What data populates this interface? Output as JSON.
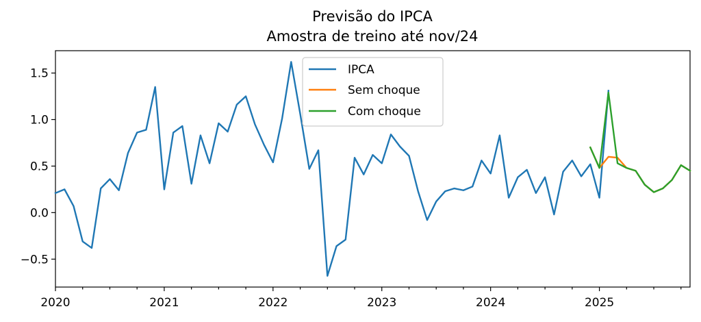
{
  "chart_data": {
    "type": "line",
    "title": "Previsão do IPCA",
    "subtitle": "Amostra de treino até nov/24",
    "xlabel": "",
    "ylabel": "",
    "xlim": [
      "2020-01",
      "2025-11"
    ],
    "ylim": [
      -0.8,
      1.74
    ],
    "x_ticks": [
      "2020",
      "2021",
      "2022",
      "2023",
      "2024",
      "2025"
    ],
    "y_ticks": [
      -0.5,
      0.0,
      0.5,
      1.0,
      1.5
    ],
    "y_tick_labels": [
      "−0.5",
      "0.0",
      "0.5",
      "1.0",
      "1.5"
    ],
    "grid": false,
    "legend_position": "top-center",
    "series": [
      {
        "name": "IPCA",
        "color": "#1f77b4",
        "x": [
          "2020-01",
          "2020-02",
          "2020-03",
          "2020-04",
          "2020-05",
          "2020-06",
          "2020-07",
          "2020-08",
          "2020-09",
          "2020-10",
          "2020-11",
          "2020-12",
          "2021-01",
          "2021-02",
          "2021-03",
          "2021-04",
          "2021-05",
          "2021-06",
          "2021-07",
          "2021-08",
          "2021-09",
          "2021-10",
          "2021-11",
          "2021-12",
          "2022-01",
          "2022-02",
          "2022-03",
          "2022-04",
          "2022-05",
          "2022-06",
          "2022-07",
          "2022-08",
          "2022-09",
          "2022-10",
          "2022-11",
          "2022-12",
          "2023-01",
          "2023-02",
          "2023-03",
          "2023-04",
          "2023-05",
          "2023-06",
          "2023-07",
          "2023-08",
          "2023-09",
          "2023-10",
          "2023-11",
          "2023-12",
          "2024-01",
          "2024-02",
          "2024-03",
          "2024-04",
          "2024-05",
          "2024-06",
          "2024-07",
          "2024-08",
          "2024-09",
          "2024-10",
          "2024-11",
          "2024-12",
          "2025-01",
          "2025-02"
        ],
        "values": [
          0.21,
          0.25,
          0.07,
          -0.31,
          -0.38,
          0.26,
          0.36,
          0.24,
          0.64,
          0.86,
          0.89,
          1.35,
          0.25,
          0.86,
          0.93,
          0.31,
          0.83,
          0.53,
          0.96,
          0.87,
          1.16,
          1.25,
          0.95,
          0.73,
          0.54,
          1.01,
          1.62,
          1.06,
          0.47,
          0.67,
          -0.68,
          -0.36,
          -0.29,
          0.59,
          0.41,
          0.62,
          0.53,
          0.84,
          0.71,
          0.61,
          0.23,
          -0.08,
          0.12,
          0.23,
          0.26,
          0.24,
          0.28,
          0.56,
          0.42,
          0.83,
          0.16,
          0.38,
          0.46,
          0.21,
          0.38,
          -0.02,
          0.44,
          0.56,
          0.39,
          0.52,
          0.16,
          1.31
        ]
      },
      {
        "name": "Sem choque",
        "color": "#ff7f0e",
        "x": [
          "2024-12",
          "2025-01",
          "2025-02",
          "2025-03",
          "2025-04",
          "2025-05",
          "2025-06",
          "2025-07",
          "2025-08",
          "2025-09",
          "2025-10",
          "2025-11"
        ],
        "values": [
          0.7,
          0.48,
          0.6,
          0.59,
          0.48,
          0.45,
          0.3,
          0.22,
          0.26,
          0.35,
          0.51,
          0.45
        ]
      },
      {
        "name": "Com choque",
        "color": "#2ca02c",
        "x": [
          "2024-12",
          "2025-01",
          "2025-02",
          "2025-03",
          "2025-04",
          "2025-05",
          "2025-06",
          "2025-07",
          "2025-08",
          "2025-09",
          "2025-10",
          "2025-11"
        ],
        "values": [
          0.7,
          0.48,
          1.29,
          0.53,
          0.48,
          0.45,
          0.3,
          0.22,
          0.26,
          0.35,
          0.51,
          0.45
        ]
      }
    ]
  }
}
